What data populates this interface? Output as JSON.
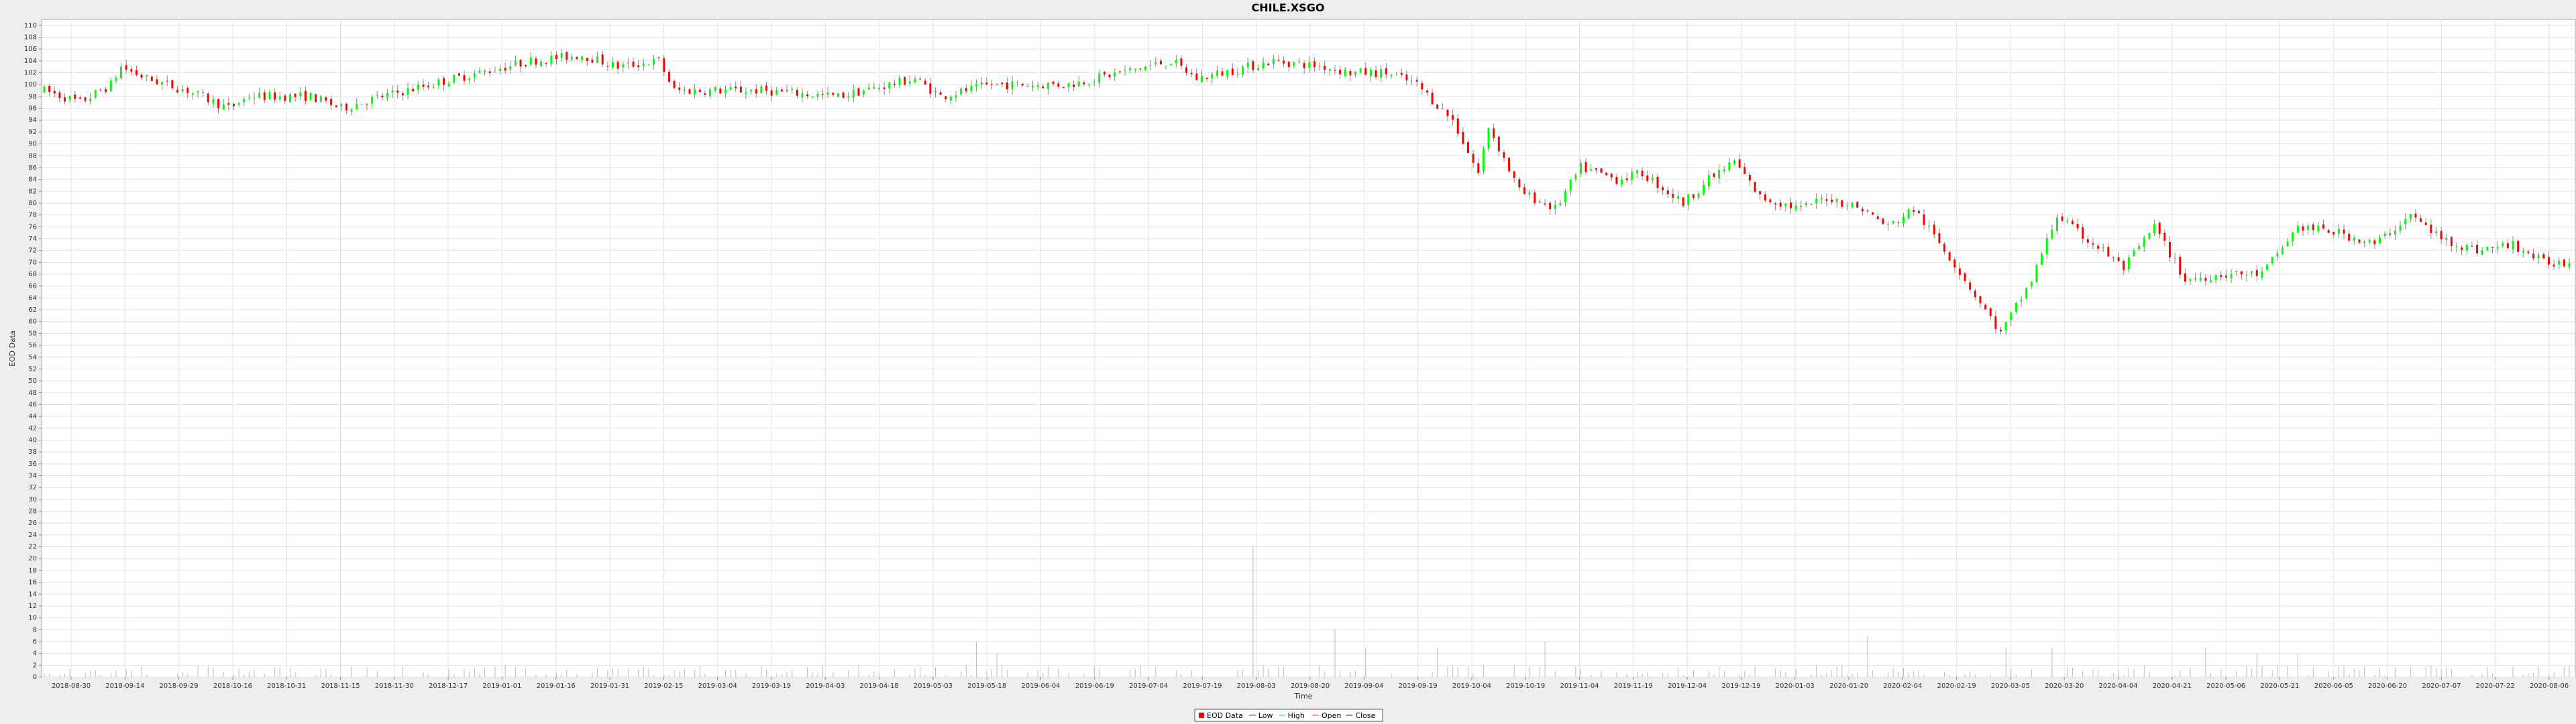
{
  "chart_data": {
    "type": "candlestick",
    "title": "CHILE.XSGO",
    "xlabel": "Time",
    "ylabel": "EOD Data",
    "ylim": [
      0,
      111
    ],
    "y_tick_step": 2,
    "grid": true,
    "legend_position": "bottom-center",
    "x_ticks": [
      "2018-08-30",
      "2018-09-14",
      "2018-09-29",
      "2018-10-16",
      "2018-10-31",
      "2018-11-15",
      "2018-11-30",
      "2018-12-17",
      "2019-01-01",
      "2019-01-16",
      "2019-01-31",
      "2019-02-15",
      "2019-03-04",
      "2019-03-19",
      "2019-04-03",
      "2019-04-18",
      "2019-05-03",
      "2019-05-18",
      "2019-06-04",
      "2019-06-19",
      "2019-07-04",
      "2019-07-19",
      "2019-08-03",
      "2019-08-20",
      "2019-09-04",
      "2019-09-19",
      "2019-10-04",
      "2019-10-19",
      "2019-11-04",
      "2019-11-19",
      "2019-12-04",
      "2019-12-19",
      "2020-01-03",
      "2020-01-20",
      "2020-02-04",
      "2020-02-19",
      "2020-03-05",
      "2020-03-20",
      "2020-04-04",
      "2020-04-21",
      "2020-05-06",
      "2020-05-21",
      "2020-06-05",
      "2020-06-20",
      "2020-07-07",
      "2020-07-22",
      "2020-08-06"
    ],
    "price_anchors": [
      {
        "t": 0,
        "v": 99
      },
      {
        "t": 7,
        "v": 97
      },
      {
        "t": 13,
        "v": 100
      },
      {
        "t": 15,
        "v": 103
      },
      {
        "t": 20,
        "v": 101
      },
      {
        "t": 28,
        "v": 99
      },
      {
        "t": 36,
        "v": 96
      },
      {
        "t": 40,
        "v": 98
      },
      {
        "t": 52,
        "v": 98
      },
      {
        "t": 58,
        "v": 96
      },
      {
        "t": 66,
        "v": 98
      },
      {
        "t": 80,
        "v": 101
      },
      {
        "t": 95,
        "v": 104
      },
      {
        "t": 105,
        "v": 105
      },
      {
        "t": 112,
        "v": 103
      },
      {
        "t": 120,
        "v": 104
      },
      {
        "t": 123,
        "v": 99
      },
      {
        "t": 140,
        "v": 99
      },
      {
        "t": 155,
        "v": 98
      },
      {
        "t": 165,
        "v": 100
      },
      {
        "t": 170,
        "v": 101
      },
      {
        "t": 175,
        "v": 98
      },
      {
        "t": 185,
        "v": 100
      },
      {
        "t": 200,
        "v": 100
      },
      {
        "t": 210,
        "v": 102
      },
      {
        "t": 220,
        "v": 104
      },
      {
        "t": 225,
        "v": 101
      },
      {
        "t": 235,
        "v": 103
      },
      {
        "t": 240,
        "v": 104
      },
      {
        "t": 250,
        "v": 103
      },
      {
        "t": 255,
        "v": 102
      },
      {
        "t": 262,
        "v": 102
      },
      {
        "t": 268,
        "v": 100
      },
      {
        "t": 275,
        "v": 94
      },
      {
        "t": 280,
        "v": 85
      },
      {
        "t": 282,
        "v": 93
      },
      {
        "t": 288,
        "v": 82
      },
      {
        "t": 295,
        "v": 79
      },
      {
        "t": 300,
        "v": 86
      },
      {
        "t": 307,
        "v": 84
      },
      {
        "t": 312,
        "v": 85
      },
      {
        "t": 320,
        "v": 80
      },
      {
        "t": 325,
        "v": 84
      },
      {
        "t": 330,
        "v": 87
      },
      {
        "t": 335,
        "v": 81
      },
      {
        "t": 343,
        "v": 79
      },
      {
        "t": 348,
        "v": 81
      },
      {
        "t": 355,
        "v": 79
      },
      {
        "t": 360,
        "v": 76
      },
      {
        "t": 365,
        "v": 79
      },
      {
        "t": 372,
        "v": 71
      },
      {
        "t": 382,
        "v": 58
      },
      {
        "t": 388,
        "v": 67
      },
      {
        "t": 393,
        "v": 78
      },
      {
        "t": 397,
        "v": 75
      },
      {
        "t": 402,
        "v": 72
      },
      {
        "t": 406,
        "v": 69
      },
      {
        "t": 412,
        "v": 76
      },
      {
        "t": 418,
        "v": 67
      },
      {
        "t": 425,
        "v": 68
      },
      {
        "t": 433,
        "v": 68
      },
      {
        "t": 440,
        "v": 76
      },
      {
        "t": 448,
        "v": 75
      },
      {
        "t": 455,
        "v": 73
      },
      {
        "t": 462,
        "v": 78
      },
      {
        "t": 468,
        "v": 74
      },
      {
        "t": 475,
        "v": 72
      },
      {
        "t": 482,
        "v": 73
      },
      {
        "t": 488,
        "v": 70
      },
      {
        "t": 492,
        "v": 70
      }
    ],
    "volume_spikes": [
      {
        "t": 182,
        "v": 6
      },
      {
        "t": 186,
        "v": 4
      },
      {
        "t": 236,
        "v": 22
      },
      {
        "t": 252,
        "v": 8
      },
      {
        "t": 258,
        "v": 5
      },
      {
        "t": 272,
        "v": 5
      },
      {
        "t": 293,
        "v": 6
      },
      {
        "t": 356,
        "v": 7
      },
      {
        "t": 383,
        "v": 5
      },
      {
        "t": 392,
        "v": 5
      },
      {
        "t": 422,
        "v": 5
      },
      {
        "t": 432,
        "v": 4
      },
      {
        "t": 440,
        "v": 4
      }
    ],
    "legend": [
      {
        "name": "EOD Data",
        "kind": "box",
        "color": "#ff0000"
      },
      {
        "name": "Low",
        "kind": "line",
        "color": "#ff0000"
      },
      {
        "name": "High",
        "kind": "line",
        "color": "#00ff00"
      },
      {
        "name": "Open",
        "kind": "line",
        "color": "#ff00ff"
      },
      {
        "name": "Close",
        "kind": "line",
        "color": "#0000ff"
      }
    ],
    "colors": {
      "up": "#00ff00",
      "down": "#ff0000",
      "wick": "#888888",
      "grid": "#e2e2e2",
      "plot_bg": "#ffffff",
      "outer_bg": "#eeeeee"
    }
  }
}
